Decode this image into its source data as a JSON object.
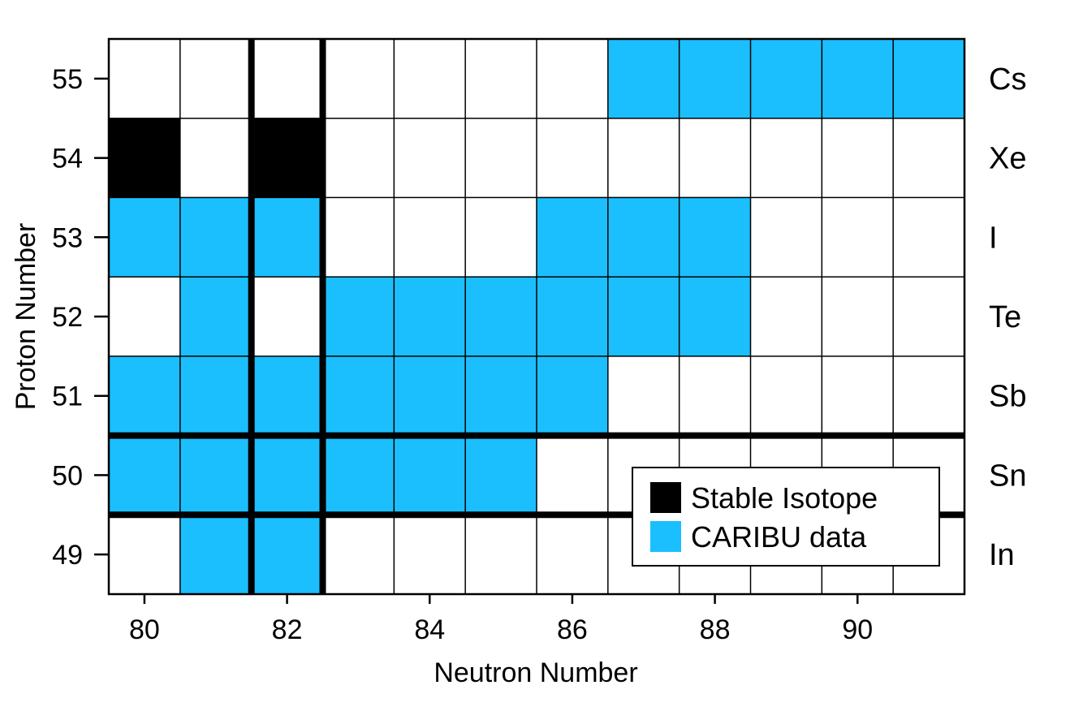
{
  "chart_data": {
    "type": "heatmap",
    "title": "",
    "xlabel": "Neutron Number",
    "ylabel": "Proton Number",
    "xlim": [
      79.5,
      91.5
    ],
    "ylim": [
      48.5,
      55.5
    ],
    "x_ticks": [
      80,
      82,
      84,
      86,
      88,
      90
    ],
    "y_ticks": [
      49,
      50,
      51,
      52,
      53,
      54,
      55
    ],
    "magic_numbers": {
      "neutron": 82,
      "proton": 50
    },
    "elements": [
      {
        "z": 55,
        "symbol": "Cs"
      },
      {
        "z": 54,
        "symbol": "Xe"
      },
      {
        "z": 53,
        "symbol": "I"
      },
      {
        "z": 52,
        "symbol": "Te"
      },
      {
        "z": 51,
        "symbol": "Sb"
      },
      {
        "z": 50,
        "symbol": "Sn"
      },
      {
        "z": 49,
        "symbol": "In"
      }
    ],
    "categories": {
      "stable": {
        "label": "Stable Isotope",
        "color": "#000000"
      },
      "caribu": {
        "label": "CARIBU data",
        "color": "#1bbffd"
      }
    },
    "cells": {
      "stable": [
        [
          80,
          54
        ],
        [
          82,
          54
        ]
      ],
      "caribu": [
        [
          87,
          55
        ],
        [
          88,
          55
        ],
        [
          89,
          55
        ],
        [
          90,
          55
        ],
        [
          91,
          55
        ],
        [
          80,
          53
        ],
        [
          81,
          53
        ],
        [
          82,
          53
        ],
        [
          86,
          53
        ],
        [
          87,
          53
        ],
        [
          88,
          53
        ],
        [
          81,
          52
        ],
        [
          83,
          52
        ],
        [
          84,
          52
        ],
        [
          85,
          52
        ],
        [
          86,
          52
        ],
        [
          87,
          52
        ],
        [
          88,
          52
        ],
        [
          80,
          51
        ],
        [
          81,
          51
        ],
        [
          82,
          51
        ],
        [
          83,
          51
        ],
        [
          84,
          51
        ],
        [
          85,
          51
        ],
        [
          86,
          51
        ],
        [
          80,
          50
        ],
        [
          81,
          50
        ],
        [
          82,
          50
        ],
        [
          83,
          50
        ],
        [
          84,
          50
        ],
        [
          85,
          50
        ],
        [
          81,
          49
        ],
        [
          82,
          49
        ]
      ]
    },
    "legend_position": "bottom-right",
    "grid": true
  }
}
